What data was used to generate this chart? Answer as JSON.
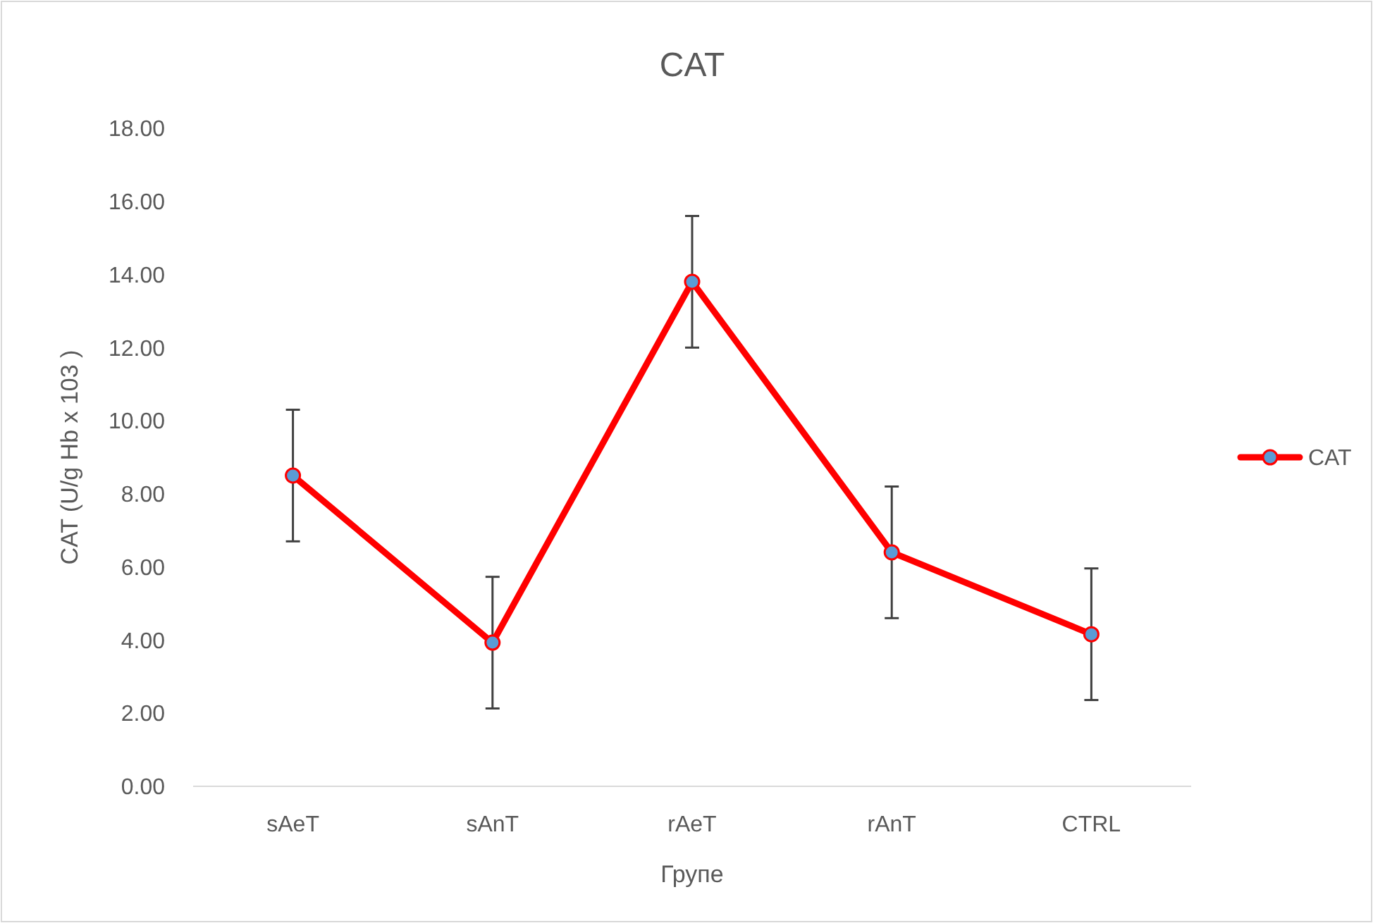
{
  "chart_data": {
    "type": "line",
    "title": "CAT",
    "xlabel": "Групе",
    "ylabel": "CAT (U/g Hb x 103 )",
    "categories": [
      "sAeT",
      "sAnT",
      "rAeT",
      "rAnT",
      "CTRL"
    ],
    "series": [
      {
        "name": "CAT",
        "color": "#ff0000",
        "values": [
          8.5,
          3.93,
          13.8,
          6.4,
          4.16
        ],
        "errors": [
          1.8,
          1.8,
          1.8,
          1.8,
          1.8
        ]
      }
    ],
    "ylim": [
      0,
      18
    ],
    "yticks": [
      {
        "value": 0,
        "label": "0.00"
      },
      {
        "value": 2,
        "label": "2.00"
      },
      {
        "value": 4,
        "label": "4.00"
      },
      {
        "value": 6,
        "label": "6.00"
      },
      {
        "value": 8,
        "label": "8.00"
      },
      {
        "value": 10,
        "label": "10.00"
      },
      {
        "value": 12,
        "label": "12.00"
      },
      {
        "value": 14,
        "label": "14.00"
      },
      {
        "value": 16,
        "label": "16.00"
      },
      {
        "value": 18,
        "label": "18.00"
      }
    ],
    "legend": "right",
    "marker": "circle",
    "line_style": "solid"
  }
}
